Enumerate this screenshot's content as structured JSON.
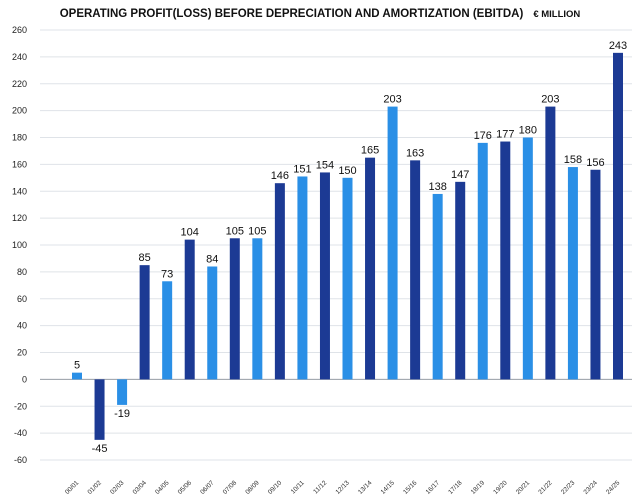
{
  "chart_data": {
    "type": "bar",
    "title": "OPERATING PROFIT(LOSS) BEFORE DEPRECIATION AND AMORTIZATION (EBITDA)",
    "unit": "€ MILLION",
    "xlabel": "",
    "ylabel": "",
    "ylim": [
      -60,
      260
    ],
    "yticks": [
      260,
      240,
      220,
      200,
      180,
      160,
      140,
      120,
      100,
      80,
      60,
      40,
      20,
      0,
      -20,
      -40,
      -60
    ],
    "grid": true,
    "categories": [
      "00/01",
      "01/02",
      "02/03",
      "03/04",
      "04/05",
      "05/06",
      "06/07",
      "07/08",
      "08/09",
      "09/10",
      "10/11",
      "11/12",
      "12/13",
      "13/14",
      "14/15",
      "15/16",
      "16/17",
      "17/18",
      "18/19",
      "19/20",
      "20/21",
      "21/22",
      "22/23",
      "23/24",
      "24/25"
    ],
    "values": [
      5,
      -45,
      -19,
      85,
      73,
      104,
      84,
      105,
      105,
      146,
      151,
      154,
      150,
      165,
      203,
      163,
      138,
      147,
      176,
      177,
      180,
      203,
      158,
      156,
      243
    ],
    "colors": [
      "light",
      "dark",
      "light",
      "dark",
      "light",
      "dark",
      "light",
      "dark",
      "light",
      "dark",
      "light",
      "dark",
      "light",
      "dark",
      "light",
      "dark",
      "light",
      "dark",
      "light",
      "dark",
      "light",
      "dark",
      "light",
      "dark",
      "dark"
    ],
    "palette": {
      "dark": "#1c3a94",
      "light": "#2a8fe6"
    }
  }
}
